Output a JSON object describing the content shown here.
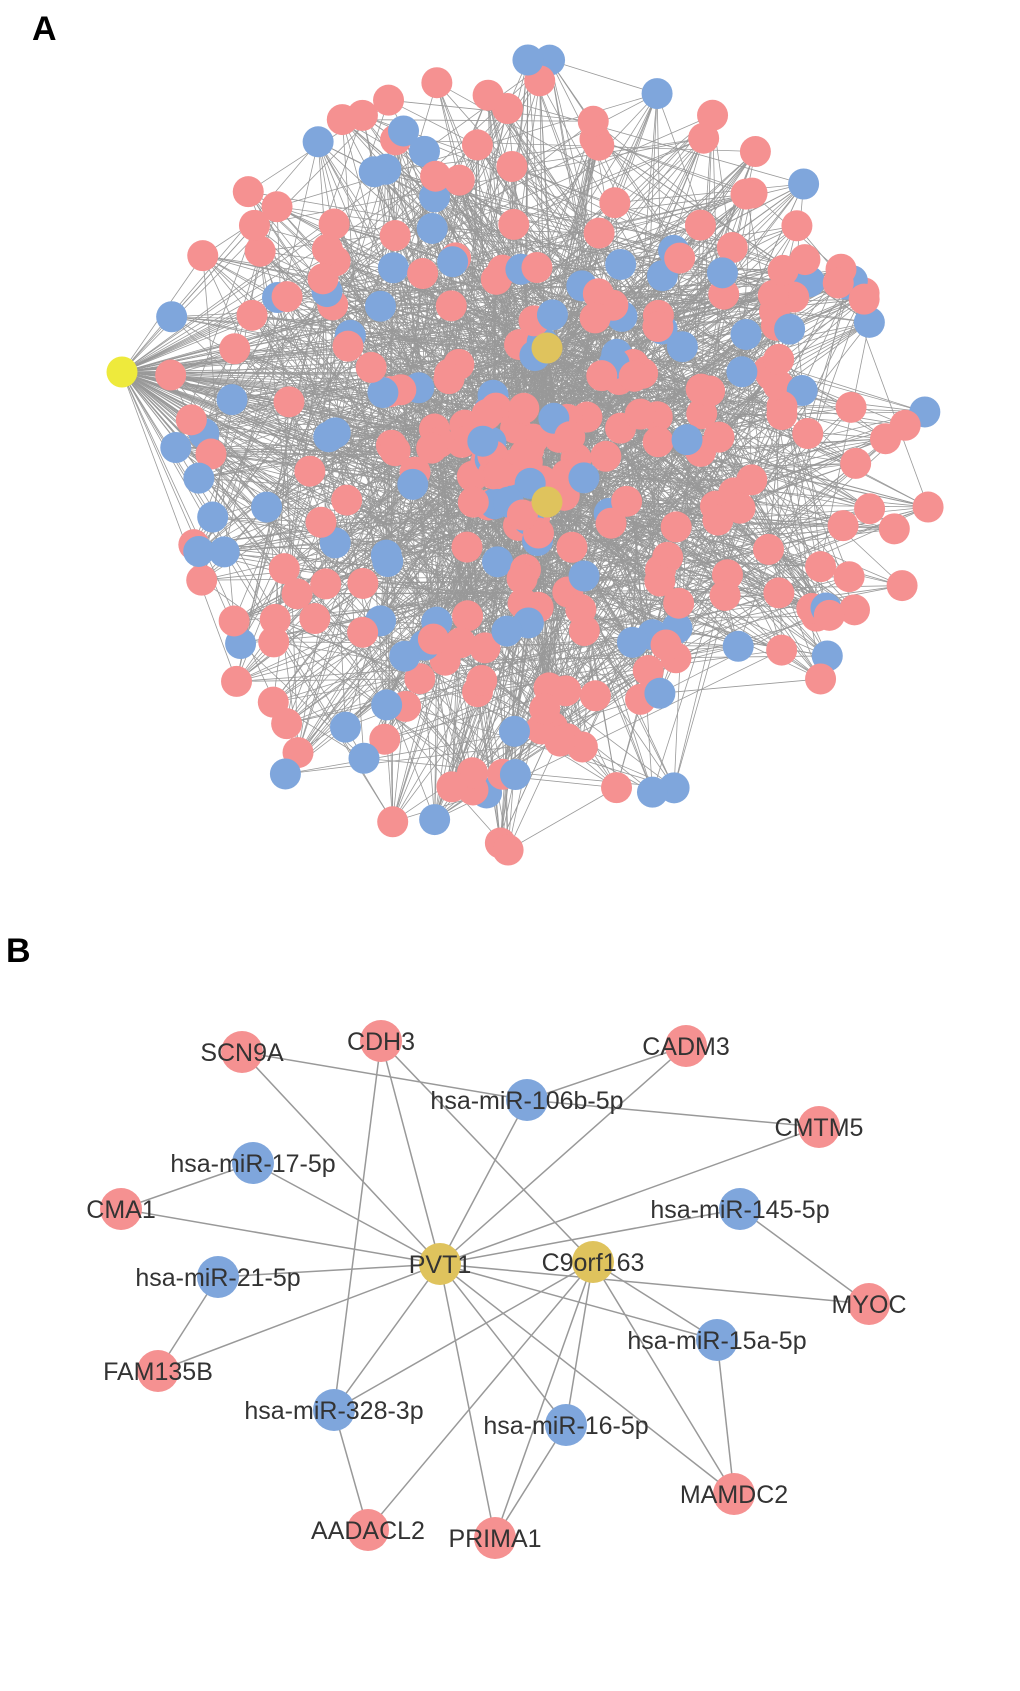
{
  "panels": {
    "a_label": "A",
    "b_label": "B"
  },
  "colors": {
    "mrna": "#f59191",
    "mirna": "#7fa6dc",
    "lncrna": "#dfc35d",
    "highlight": "#eeea3c",
    "edge": "#999999"
  },
  "network_b": {
    "nodes": [
      {
        "id": "SCN9A",
        "type": "mrna"
      },
      {
        "id": "CDH3",
        "type": "mrna"
      },
      {
        "id": "CADM3",
        "type": "mrna"
      },
      {
        "id": "hsa-miR-106b-5p",
        "type": "mirna"
      },
      {
        "id": "CMTM5",
        "type": "mrna"
      },
      {
        "id": "hsa-miR-17-5p",
        "type": "mirna"
      },
      {
        "id": "CMA1",
        "type": "mrna"
      },
      {
        "id": "hsa-miR-145-5p",
        "type": "mirna"
      },
      {
        "id": "PVT1",
        "type": "lncrna"
      },
      {
        "id": "C9orf163",
        "type": "lncrna"
      },
      {
        "id": "hsa-miR-21-5p",
        "type": "mirna"
      },
      {
        "id": "MYOC",
        "type": "mrna"
      },
      {
        "id": "hsa-miR-15a-5p",
        "type": "mirna"
      },
      {
        "id": "FAM135B",
        "type": "mrna"
      },
      {
        "id": "hsa-miR-328-3p",
        "type": "mirna"
      },
      {
        "id": "hsa-miR-16-5p",
        "type": "mirna"
      },
      {
        "id": "MAMDC2",
        "type": "mrna"
      },
      {
        "id": "AADACL2",
        "type": "mrna"
      },
      {
        "id": "PRIMA1",
        "type": "mrna"
      }
    ],
    "edges": [
      [
        "SCN9A",
        "hsa-miR-106b-5p"
      ],
      [
        "SCN9A",
        "PVT1"
      ],
      [
        "CDH3",
        "PVT1"
      ],
      [
        "CDH3",
        "hsa-miR-328-3p"
      ],
      [
        "CDH3",
        "C9orf163"
      ],
      [
        "CADM3",
        "hsa-miR-106b-5p"
      ],
      [
        "CADM3",
        "PVT1"
      ],
      [
        "hsa-miR-106b-5p",
        "PVT1"
      ],
      [
        "hsa-miR-106b-5p",
        "CMTM5"
      ],
      [
        "CMTM5",
        "PVT1"
      ],
      [
        "hsa-miR-17-5p",
        "CMA1"
      ],
      [
        "hsa-miR-17-5p",
        "PVT1"
      ],
      [
        "CMA1",
        "PVT1"
      ],
      [
        "hsa-miR-145-5p",
        "PVT1"
      ],
      [
        "hsa-miR-145-5p",
        "MYOC"
      ],
      [
        "hsa-miR-21-5p",
        "PVT1"
      ],
      [
        "hsa-miR-21-5p",
        "FAM135B"
      ],
      [
        "FAM135B",
        "PVT1"
      ],
      [
        "PVT1",
        "MYOC"
      ],
      [
        "PVT1",
        "hsa-miR-15a-5p"
      ],
      [
        "C9orf163",
        "hsa-miR-15a-5p"
      ],
      [
        "PVT1",
        "hsa-miR-328-3p"
      ],
      [
        "PVT1",
        "PRIMA1"
      ],
      [
        "PVT1",
        "hsa-miR-16-5p"
      ],
      [
        "PVT1",
        "MAMDC2"
      ],
      [
        "C9orf163",
        "hsa-miR-328-3p"
      ],
      [
        "C9orf163",
        "AADACL2"
      ],
      [
        "C9orf163",
        "PRIMA1"
      ],
      [
        "C9orf163",
        "hsa-miR-16-5p"
      ],
      [
        "C9orf163",
        "MAMDC2"
      ],
      [
        "hsa-miR-15a-5p",
        "MAMDC2"
      ],
      [
        "hsa-miR-328-3p",
        "AADACL2"
      ],
      [
        "hsa-miR-16-5p",
        "PRIMA1"
      ]
    ]
  }
}
